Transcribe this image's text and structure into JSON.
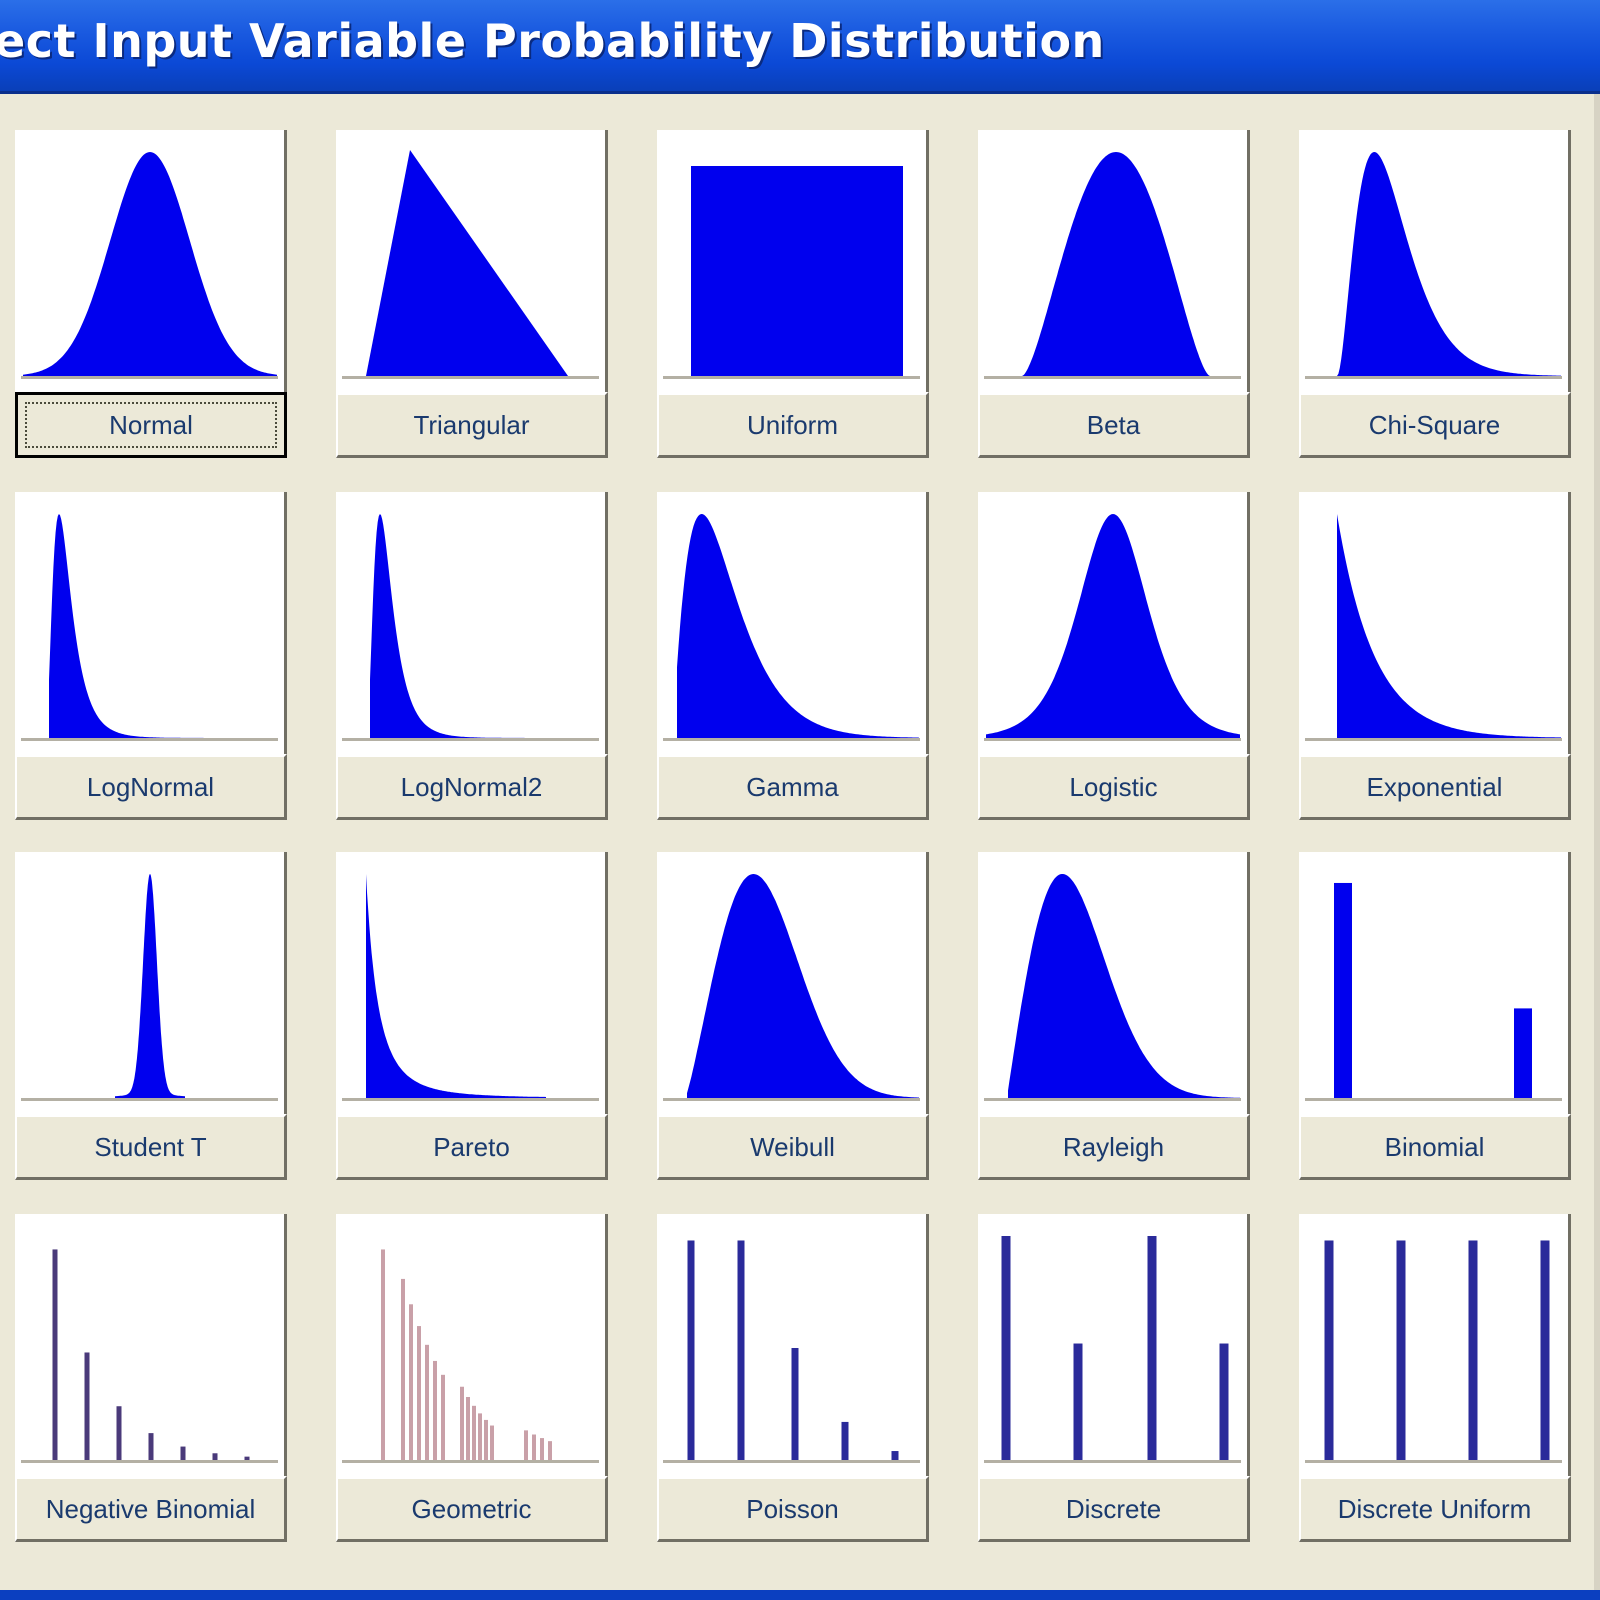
{
  "window": {
    "title": "ect Input Variable Probability Distribution"
  },
  "colors": {
    "fill": "#0000ee",
    "bar": "#2a2a9a",
    "geometric_bar": "#c9a0a8",
    "titlebar": "#0b49d6"
  },
  "distributions": [
    {
      "label": "Normal",
      "icon": "normal-curve",
      "selected": true
    },
    {
      "label": "Triangular",
      "icon": "triangle-shape"
    },
    {
      "label": "Uniform",
      "icon": "uniform-rectangle"
    },
    {
      "label": "Beta",
      "icon": "beta-curve"
    },
    {
      "label": "Chi-Square",
      "icon": "chi-square-curve"
    },
    {
      "label": "LogNormal",
      "icon": "lognormal-curve"
    },
    {
      "label": "LogNormal2",
      "icon": "lognormal2-curve"
    },
    {
      "label": "Gamma",
      "icon": "gamma-curve"
    },
    {
      "label": "Logistic",
      "icon": "logistic-curve"
    },
    {
      "label": "Exponential",
      "icon": "exponential-curve"
    },
    {
      "label": "Student T",
      "icon": "student-t-curve"
    },
    {
      "label": "Pareto",
      "icon": "pareto-curve"
    },
    {
      "label": "Weibull",
      "icon": "weibull-curve"
    },
    {
      "label": "Rayleigh",
      "icon": "rayleigh-curve"
    },
    {
      "label": "Binomial",
      "icon": "binomial-bars"
    },
    {
      "label": "Negative Binomial",
      "icon": "negative-binomial-bars"
    },
    {
      "label": "Geometric",
      "icon": "geometric-bars"
    },
    {
      "label": "Poisson",
      "icon": "poisson-bars"
    },
    {
      "label": "Discrete",
      "icon": "discrete-bars"
    },
    {
      "label": "Discrete Uniform",
      "icon": "discrete-uniform-bars"
    }
  ]
}
